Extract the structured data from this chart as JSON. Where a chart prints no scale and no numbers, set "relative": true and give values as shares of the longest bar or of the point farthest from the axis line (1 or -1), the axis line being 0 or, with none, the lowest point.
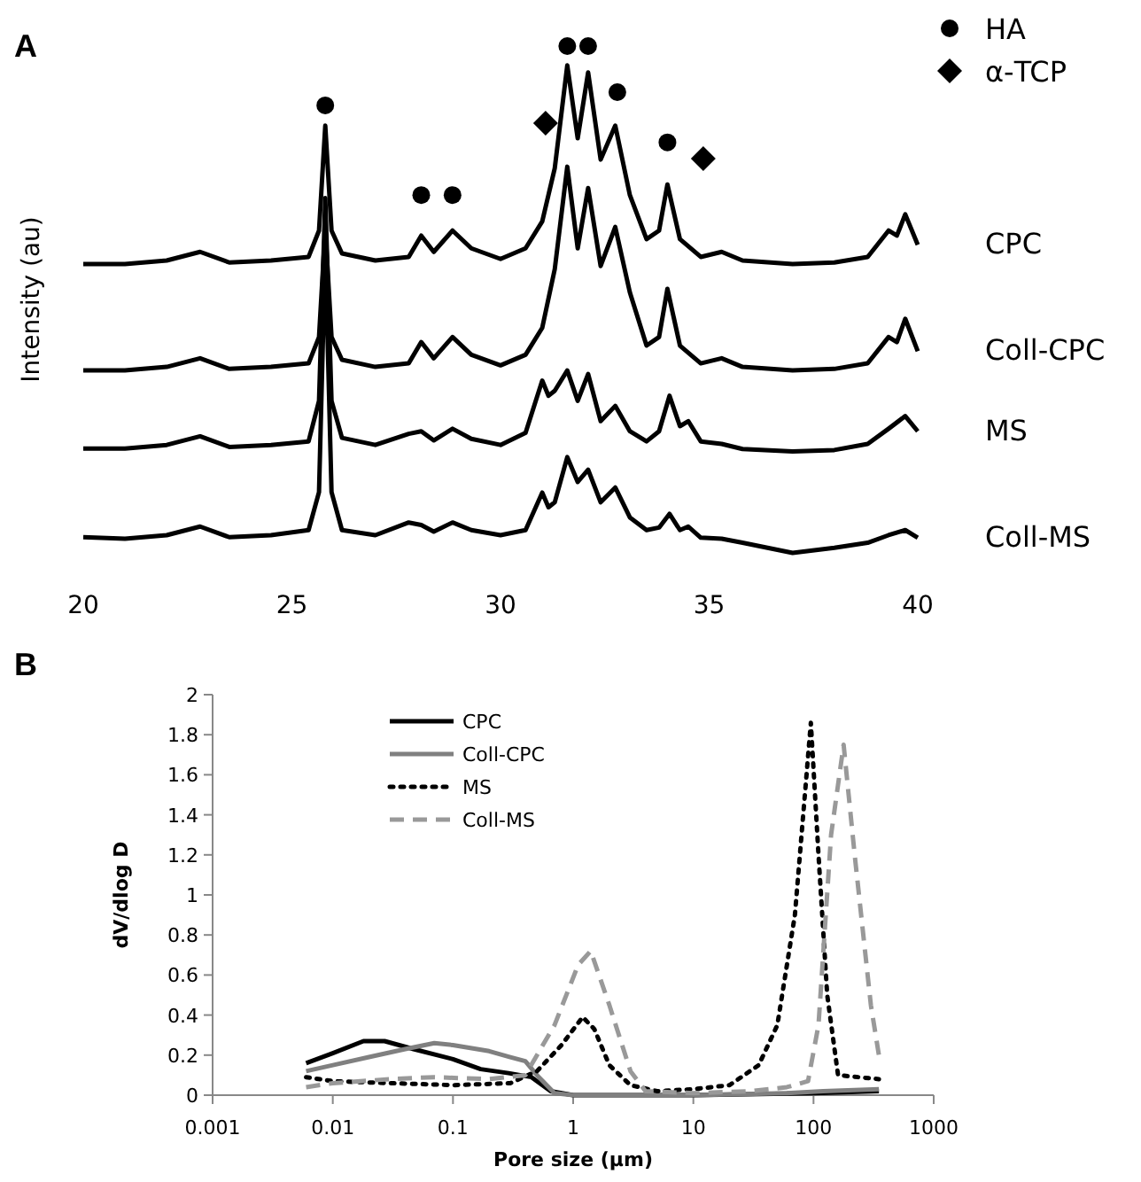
{
  "chart_data": [
    {
      "type": "line",
      "title": "A",
      "ylabel": "Intensity (au)",
      "relative": true,
      "xlim": [
        20,
        40
      ],
      "xticks": [
        20,
        25,
        30,
        35,
        40
      ],
      "legend": "top right",
      "series": [
        {
          "name": "CPC",
          "color": "#000000",
          "x": [
            20,
            21,
            22,
            22.8,
            23.5,
            24.5,
            25.4,
            25.65,
            25.8,
            25.95,
            26.2,
            27,
            27.8,
            28.1,
            28.4,
            28.85,
            29.3,
            30,
            30.6,
            31.0,
            31.3,
            31.6,
            31.85,
            32.1,
            32.4,
            32.75,
            33.1,
            33.5,
            33.8,
            34.0,
            34.3,
            34.8,
            35.3,
            35.8,
            37,
            38,
            38.8,
            39.3,
            39.5,
            39.7,
            40
          ],
          "values": [
            0.57,
            0.57,
            0.577,
            0.594,
            0.573,
            0.577,
            0.584,
            0.636,
            0.843,
            0.636,
            0.591,
            0.577,
            0.584,
            0.626,
            0.594,
            0.636,
            0.601,
            0.58,
            0.601,
            0.654,
            0.759,
            0.962,
            0.818,
            0.948,
            0.776,
            0.843,
            0.706,
            0.619,
            0.636,
            0.727,
            0.619,
            0.584,
            0.594,
            0.577,
            0.57,
            0.573,
            0.584,
            0.636,
            0.626,
            0.668,
            0.608
          ]
        },
        {
          "name": "Coll-CPC",
          "color": "#000000",
          "x": [
            20,
            21,
            22,
            22.8,
            23.5,
            24.5,
            25.4,
            25.65,
            25.8,
            25.95,
            26.2,
            27,
            27.8,
            28.1,
            28.4,
            28.85,
            29.3,
            30,
            30.6,
            31.0,
            31.3,
            31.6,
            31.85,
            32.1,
            32.4,
            32.75,
            33.1,
            33.5,
            33.8,
            34.0,
            34.3,
            34.8,
            35.3,
            35.8,
            37,
            38,
            38.8,
            39.3,
            39.5,
            39.7,
            40
          ],
          "values": [
            0.36,
            0.36,
            0.367,
            0.384,
            0.363,
            0.367,
            0.374,
            0.426,
            0.64,
            0.426,
            0.381,
            0.367,
            0.374,
            0.416,
            0.384,
            0.426,
            0.391,
            0.37,
            0.391,
            0.444,
            0.56,
            0.762,
            0.601,
            0.72,
            0.566,
            0.643,
            0.514,
            0.409,
            0.426,
            0.521,
            0.409,
            0.374,
            0.384,
            0.367,
            0.36,
            0.363,
            0.374,
            0.426,
            0.416,
            0.462,
            0.398
          ]
        },
        {
          "name": "MS",
          "color": "#000000",
          "x": [
            20,
            21,
            22,
            22.8,
            23.5,
            24.5,
            25.4,
            25.65,
            25.8,
            25.95,
            26.2,
            27,
            27.8,
            28.1,
            28.4,
            28.85,
            29.3,
            30,
            30.6,
            31.0,
            31.15,
            31.3,
            31.6,
            31.85,
            32.1,
            32.4,
            32.75,
            33.1,
            33.5,
            33.8,
            34.05,
            34.3,
            34.5,
            34.8,
            35.3,
            35.8,
            37,
            38,
            38.8,
            39.3,
            39.7,
            40
          ],
          "values": [
            0.206,
            0.206,
            0.213,
            0.23,
            0.209,
            0.213,
            0.22,
            0.3,
            0.7,
            0.3,
            0.227,
            0.213,
            0.235,
            0.24,
            0.222,
            0.245,
            0.225,
            0.213,
            0.237,
            0.34,
            0.31,
            0.32,
            0.36,
            0.3,
            0.353,
            0.26,
            0.29,
            0.24,
            0.22,
            0.24,
            0.31,
            0.25,
            0.26,
            0.22,
            0.215,
            0.205,
            0.2,
            0.203,
            0.215,
            0.245,
            0.27,
            0.24
          ]
        },
        {
          "name": "Coll-MS",
          "color": "#000000",
          "x": [
            20,
            21,
            22,
            22.8,
            23.5,
            24.5,
            25.4,
            25.65,
            25.8,
            25.95,
            26.2,
            27,
            27.8,
            28.1,
            28.4,
            28.85,
            29.3,
            30,
            30.6,
            31.0,
            31.15,
            31.3,
            31.6,
            31.85,
            32.1,
            32.4,
            32.75,
            33.1,
            33.5,
            33.8,
            34.05,
            34.3,
            34.5,
            34.8,
            35.3,
            35.8,
            37,
            38,
            38.8,
            39.3,
            39.7,
            40
          ],
          "values": [
            0.031,
            0.028,
            0.035,
            0.052,
            0.031,
            0.035,
            0.045,
            0.12,
            0.6,
            0.12,
            0.045,
            0.035,
            0.06,
            0.055,
            0.042,
            0.06,
            0.045,
            0.035,
            0.045,
            0.119,
            0.09,
            0.1,
            0.189,
            0.14,
            0.164,
            0.1,
            0.129,
            0.07,
            0.045,
            0.05,
            0.077,
            0.045,
            0.052,
            0.03,
            0.028,
            0.02,
            0.0,
            0.01,
            0.02,
            0.035,
            0.045,
            0.03
          ]
        },
        {
          "name": "HA",
          "type": "scatter",
          "marker": "circle",
          "color": "#000000",
          "x": [
            25.8,
            28.1,
            28.85,
            31.6,
            32.1,
            32.8,
            34.0
          ],
          "values": [
            0.883,
            0.706,
            0.706,
            1.0,
            1.0,
            0.909,
            0.81
          ]
        },
        {
          "name": "α-TCP",
          "type": "scatter",
          "marker": "diamond",
          "color": "#000000",
          "x": [
            31.08,
            34.86
          ],
          "values": [
            0.848,
            0.778
          ]
        }
      ]
    },
    {
      "type": "line",
      "title": "B",
      "xlabel": "Pore size (µm)",
      "ylabel": "dV/dlog D",
      "log": "x",
      "xlim": [
        0.001,
        1000
      ],
      "xticks": [
        0.001,
        0.01,
        0.1,
        1,
        10,
        100,
        1000
      ],
      "ylim": [
        0,
        2
      ],
      "yticks": [
        0,
        0.2,
        0.4,
        0.6,
        0.8,
        1,
        1.2,
        1.4,
        1.6,
        1.8,
        2
      ],
      "legend": "top left",
      "series": [
        {
          "name": "CPC",
          "color": "#000000",
          "line_style": "solid",
          "x": [
            0.006,
            0.01,
            0.018,
            0.027,
            0.047,
            0.1,
            0.17,
            0.29,
            0.45,
            0.65,
            1,
            10,
            100,
            350
          ],
          "values": [
            0.16,
            0.21,
            0.27,
            0.27,
            0.23,
            0.18,
            0.13,
            0.11,
            0.09,
            0.02,
            0.0,
            0.0,
            0.01,
            0.02
          ]
        },
        {
          "name": "Coll-CPC",
          "color": "#808080",
          "line_style": "solid",
          "x": [
            0.006,
            0.01,
            0.02,
            0.04,
            0.07,
            0.1,
            0.2,
            0.3,
            0.4,
            0.5,
            0.7,
            1,
            10,
            60,
            120,
            350
          ],
          "values": [
            0.12,
            0.15,
            0.19,
            0.23,
            0.26,
            0.25,
            0.22,
            0.19,
            0.17,
            0.1,
            0.01,
            0.0,
            0.0,
            0.01,
            0.02,
            0.03
          ]
        },
        {
          "name": "MS",
          "color": "#000000",
          "line_style": "dotted",
          "x": [
            0.006,
            0.01,
            0.03,
            0.1,
            0.3,
            0.5,
            0.8,
            1.2,
            1.5,
            2,
            3,
            5,
            10,
            20,
            35,
            50,
            70,
            95,
            110,
            130,
            160,
            350
          ],
          "values": [
            0.09,
            0.07,
            0.06,
            0.05,
            0.06,
            0.12,
            0.25,
            0.39,
            0.33,
            0.15,
            0.05,
            0.02,
            0.03,
            0.05,
            0.15,
            0.35,
            0.9,
            1.86,
            1.2,
            0.5,
            0.1,
            0.08
          ]
        },
        {
          "name": "Coll-MS",
          "color": "#999999",
          "line_style": "dashed",
          "x": [
            0.006,
            0.01,
            0.03,
            0.07,
            0.2,
            0.4,
            0.7,
            1.1,
            1.4,
            2,
            3,
            4,
            10,
            30,
            60,
            90,
            110,
            140,
            178,
            220,
            300,
            350
          ],
          "values": [
            0.04,
            0.06,
            0.08,
            0.09,
            0.08,
            0.1,
            0.35,
            0.65,
            0.72,
            0.45,
            0.12,
            0.02,
            0.01,
            0.02,
            0.04,
            0.07,
            0.35,
            1.3,
            1.75,
            1.2,
            0.45,
            0.2
          ]
        }
      ]
    }
  ]
}
